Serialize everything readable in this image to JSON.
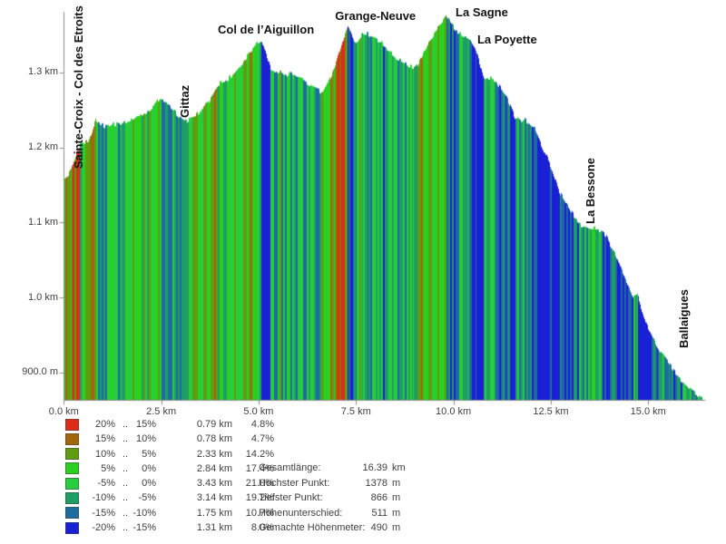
{
  "chart_data": {
    "type": "area",
    "title": "",
    "total_km": 16.39,
    "x_axis": {
      "unit": "km",
      "range_km": [
        0,
        16.39
      ],
      "ticks": [
        {
          "label": "0.0 km",
          "km": 0
        },
        {
          "label": "2.5 km",
          "km": 2.5
        },
        {
          "label": "5.0 km",
          "km": 5
        },
        {
          "label": "7.5 km",
          "km": 7.5
        },
        {
          "label": "10.0 km",
          "km": 10
        },
        {
          "label": "12.5 km",
          "km": 12.5
        },
        {
          "label": "15.0 km",
          "km": 15
        }
      ]
    },
    "y_axis": {
      "unit": "m",
      "range_m": [
        863,
        1385
      ],
      "ticks": [
        {
          "label": "1.3 km",
          "m": 1300
        },
        {
          "label": "1.2 km",
          "m": 1200
        },
        {
          "label": "1.1 km",
          "m": 1100
        },
        {
          "label": "1.0 km",
          "m": 1000
        },
        {
          "label": "900.0 m",
          "m": 900
        }
      ]
    },
    "waypoints": [
      {
        "label": "Sainte-Croix - Col des Etroits",
        "label_km": 0.37,
        "label_elev_m": 1172,
        "rotated": true
      },
      {
        "label": "Gittaz",
        "label_km": 3.09,
        "label_elev_m": 1240,
        "rotated": true
      },
      {
        "label": "Col de l’Aiguillon",
        "label_km": 5.19,
        "label_elev_m": 1348,
        "rotated": false
      },
      {
        "label": "Grange-Neuve",
        "label_km": 8.0,
        "label_elev_m": 1366,
        "rotated": false
      },
      {
        "label": "La Sagne",
        "label_km": 10.73,
        "label_elev_m": 1371,
        "rotated": false
      },
      {
        "label": "La Poyette",
        "label_km": 11.38,
        "label_elev_m": 1335,
        "rotated": false
      },
      {
        "label": "La Bessone",
        "label_km": 13.5,
        "label_elev_m": 1098,
        "rotated": true
      },
      {
        "label": "Ballaigues",
        "label_km": 15.9,
        "label_elev_m": 932,
        "rotated": true
      }
    ],
    "profile": [
      [
        0.0,
        1158
      ],
      [
        0.18,
        1172
      ],
      [
        0.4,
        1205
      ],
      [
        0.55,
        1208
      ],
      [
        0.63,
        1211
      ],
      [
        0.72,
        1224
      ],
      [
        0.81,
        1238
      ],
      [
        0.93,
        1233
      ],
      [
        1.1,
        1228
      ],
      [
        1.28,
        1233
      ],
      [
        1.45,
        1231
      ],
      [
        1.63,
        1237
      ],
      [
        1.86,
        1243
      ],
      [
        2.09,
        1248
      ],
      [
        2.33,
        1259
      ],
      [
        2.44,
        1267
      ],
      [
        2.58,
        1262
      ],
      [
        2.67,
        1259
      ],
      [
        2.91,
        1245
      ],
      [
        3.05,
        1239
      ],
      [
        3.14,
        1236
      ],
      [
        3.37,
        1244
      ],
      [
        3.6,
        1256
      ],
      [
        3.72,
        1263
      ],
      [
        3.95,
        1286
      ],
      [
        4.19,
        1292
      ],
      [
        4.47,
        1306
      ],
      [
        4.7,
        1323
      ],
      [
        4.95,
        1341
      ],
      [
        5.07,
        1345
      ],
      [
        5.16,
        1331
      ],
      [
        5.3,
        1307
      ],
      [
        5.47,
        1300
      ],
      [
        5.58,
        1304
      ],
      [
        5.7,
        1297
      ],
      [
        5.81,
        1303
      ],
      [
        6.0,
        1295
      ],
      [
        6.23,
        1288
      ],
      [
        6.47,
        1279
      ],
      [
        6.63,
        1275
      ],
      [
        6.79,
        1289
      ],
      [
        6.95,
        1309
      ],
      [
        7.1,
        1334
      ],
      [
        7.2,
        1352
      ],
      [
        7.28,
        1364
      ],
      [
        7.42,
        1346
      ],
      [
        7.5,
        1343
      ],
      [
        7.65,
        1352
      ],
      [
        7.79,
        1353
      ],
      [
        8.14,
        1341
      ],
      [
        8.49,
        1323
      ],
      [
        8.77,
        1313
      ],
      [
        8.95,
        1308
      ],
      [
        9.07,
        1310
      ],
      [
        9.25,
        1330
      ],
      [
        9.53,
        1356
      ],
      [
        9.81,
        1378
      ],
      [
        10.05,
        1357
      ],
      [
        10.23,
        1351
      ],
      [
        10.4,
        1348
      ],
      [
        10.58,
        1331
      ],
      [
        10.77,
        1293
      ],
      [
        10.91,
        1294
      ],
      [
        11.05,
        1292
      ],
      [
        11.33,
        1272
      ],
      [
        11.58,
        1241
      ],
      [
        11.72,
        1238
      ],
      [
        11.81,
        1240
      ],
      [
        12.09,
        1226
      ],
      [
        12.28,
        1201
      ],
      [
        12.49,
        1177
      ],
      [
        12.72,
        1142
      ],
      [
        13.07,
        1111
      ],
      [
        13.26,
        1098
      ],
      [
        13.49,
        1095
      ],
      [
        13.77,
        1091
      ],
      [
        13.91,
        1083
      ],
      [
        14.14,
        1059
      ],
      [
        14.42,
        1023
      ],
      [
        14.6,
        1001
      ],
      [
        14.72,
        1004
      ],
      [
        14.93,
        968
      ],
      [
        15.23,
        935
      ],
      [
        15.51,
        914
      ],
      [
        15.77,
        895
      ],
      [
        16.05,
        879
      ],
      [
        16.39,
        866
      ]
    ],
    "legend": {
      "separator": "..",
      "rows": [
        {
          "from": "20%",
          "to": "15%",
          "min_pct": 15,
          "color": "#dd2c18",
          "distance": "0.79 km",
          "share": "4.8%"
        },
        {
          "from": "15%",
          "to": "10%",
          "min_pct": 10,
          "color": "#a2660c",
          "distance": "0.78 km",
          "share": "4.7%"
        },
        {
          "from": "10%",
          "to": "5%",
          "min_pct": 5,
          "color": "#5f9c12",
          "distance": "2.33 km",
          "share": "14.2%"
        },
        {
          "from": "5%",
          "to": "0%",
          "min_pct": 0,
          "color": "#2bd01f",
          "distance": "2.84 km",
          "share": "17.4%"
        },
        {
          "from": "-5%",
          "to": "0%",
          "min_pct": -5,
          "color": "#26cd3e",
          "distance": "3.43 km",
          "share": "21.0%"
        },
        {
          "from": "-10%",
          "to": "-5%",
          "min_pct": -10,
          "color": "#1f9e63",
          "distance": "3.14 km",
          "share": "19.2%"
        },
        {
          "from": "-15%",
          "to": "-10%",
          "min_pct": -15,
          "color": "#1e6ba0",
          "distance": "1.75 km",
          "share": "10.7%"
        },
        {
          "from": "-20%",
          "to": "-15%",
          "min_pct": -20,
          "color": "#1a20d5",
          "distance": "1.31 km",
          "share": "8.0%"
        }
      ]
    },
    "stats": [
      {
        "label": "Gesamtlänge:",
        "value": "16.39",
        "unit": "km"
      },
      {
        "label": "Höchster Punkt:",
        "value": "1378",
        "unit": "m"
      },
      {
        "label": "Tiefster Punkt:",
        "value": "866",
        "unit": "m"
      },
      {
        "label": "Höhenunterschied:",
        "value": "511",
        "unit": "m"
      },
      {
        "label": "Gemachte Höhenmeter:",
        "value": "490",
        "unit": "m"
      }
    ]
  }
}
